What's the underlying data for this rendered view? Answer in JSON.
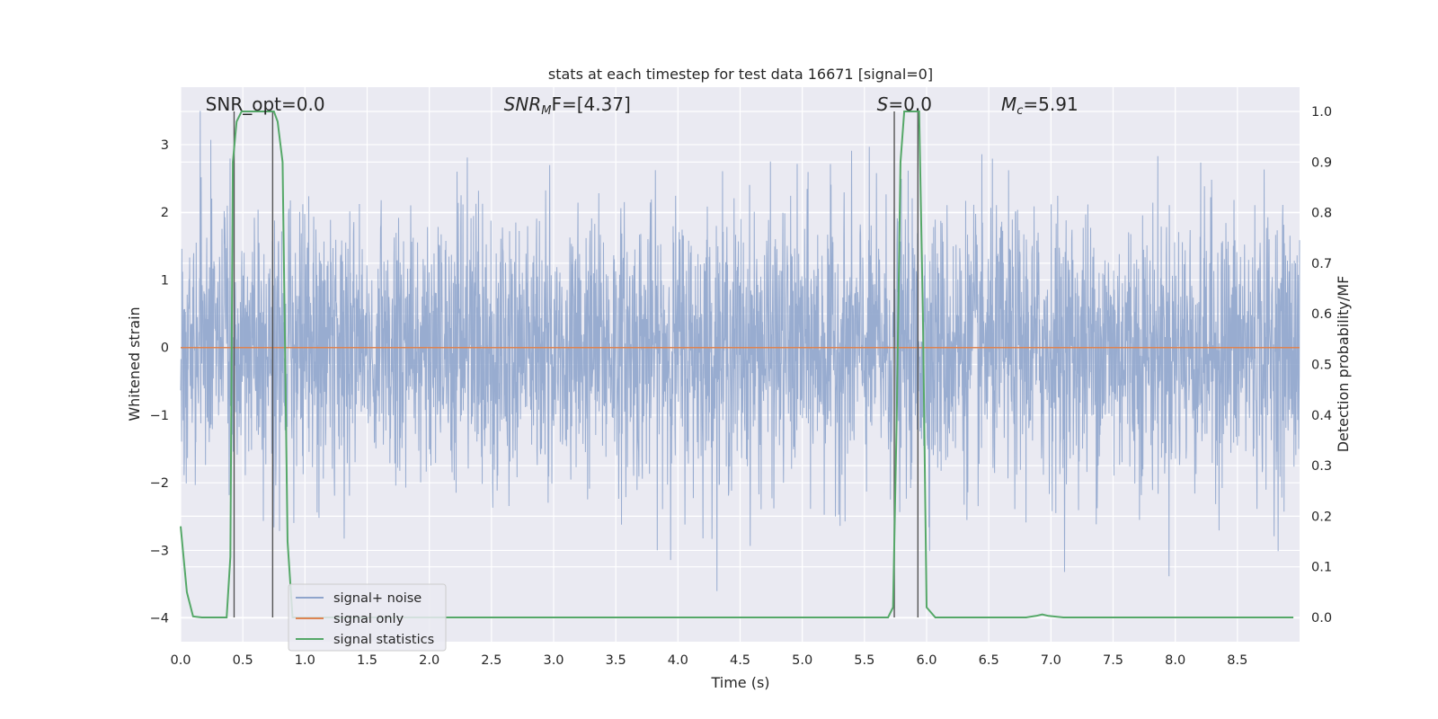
{
  "chart_data": {
    "type": "line",
    "title": "stats at each timestep for test data 16671 [signal=0]",
    "xlabel": "Time (s)",
    "ylabel_left": "Whitened strain",
    "ylabel_right": "Detection probability/MF",
    "xlim": [
      0.0,
      9.0
    ],
    "ylim_left": [
      -4.35,
      3.85
    ],
    "ylim_right": [
      -0.048,
      1.048
    ],
    "x_ticks": [
      "0.0",
      "0.5",
      "1.0",
      "1.5",
      "2.0",
      "2.5",
      "3.0",
      "3.5",
      "4.0",
      "4.5",
      "5.0",
      "5.5",
      "6.0",
      "6.5",
      "7.0",
      "7.5",
      "8.0",
      "8.5"
    ],
    "y_ticks_left": [
      "−4",
      "−3",
      "−2",
      "−1",
      "0",
      "1",
      "2",
      "3"
    ],
    "y_ticks_right": [
      "0.0",
      "0.1",
      "0.2",
      "0.3",
      "0.4",
      "0.5",
      "0.6",
      "0.7",
      "0.8",
      "0.9",
      "1.0"
    ],
    "grid": true,
    "legend_position": "lower-left",
    "annotations": [
      {
        "text": "SNR_opt=0.0",
        "x": 0.2
      },
      {
        "prefix": "SNR",
        "sub": "M",
        "suffix": "F=[4.37]",
        "x": 2.6
      },
      {
        "prefix": "S",
        "sub": "",
        "suffix": "=0.0",
        "x": 5.6
      },
      {
        "prefix": "M",
        "sub": "c",
        "suffix": "=5.91",
        "x": 6.6
      }
    ],
    "vlines": [
      0.43,
      0.74,
      5.74,
      5.93
    ],
    "series": [
      {
        "name": "signal+ noise",
        "color": "#8fa5cc",
        "axis": "left",
        "kind": "noise",
        "std": 1.0,
        "range": [
          -3.6,
          3.5
        ]
      },
      {
        "name": "signal only",
        "color": "#dd8452",
        "axis": "left",
        "values_constant": 0.0
      },
      {
        "name": "signal statistics",
        "color": "#55a868",
        "axis": "right",
        "x": [
          0.0,
          0.05,
          0.1,
          0.17,
          0.3,
          0.37,
          0.4,
          0.42,
          0.45,
          0.49,
          0.55,
          0.63,
          0.71,
          0.75,
          0.78,
          0.82,
          0.86,
          0.9,
          1.0,
          2.0,
          3.0,
          4.0,
          5.0,
          5.5,
          5.69,
          5.73,
          5.76,
          5.79,
          5.82,
          5.85,
          5.88,
          5.92,
          5.94,
          5.97,
          6.0,
          6.07,
          6.5,
          6.8,
          6.88,
          6.93,
          6.98,
          7.1,
          7.5,
          8.0,
          8.5,
          8.95
        ],
        "y": [
          0.18,
          0.05,
          0.002,
          0.0,
          0.0,
          0.0,
          0.12,
          0.9,
          0.98,
          1.0,
          1.0,
          1.0,
          1.0,
          1.0,
          0.98,
          0.9,
          0.15,
          0.0,
          0.0,
          0.0,
          0.0,
          0.0,
          0.0,
          0.0,
          0.0,
          0.02,
          0.4,
          0.9,
          1.0,
          1.0,
          1.0,
          1.0,
          1.0,
          0.6,
          0.02,
          0.0,
          0.0,
          0.0,
          0.003,
          0.006,
          0.003,
          0.0,
          0.0,
          0.0,
          0.0,
          0.0
        ]
      }
    ]
  }
}
